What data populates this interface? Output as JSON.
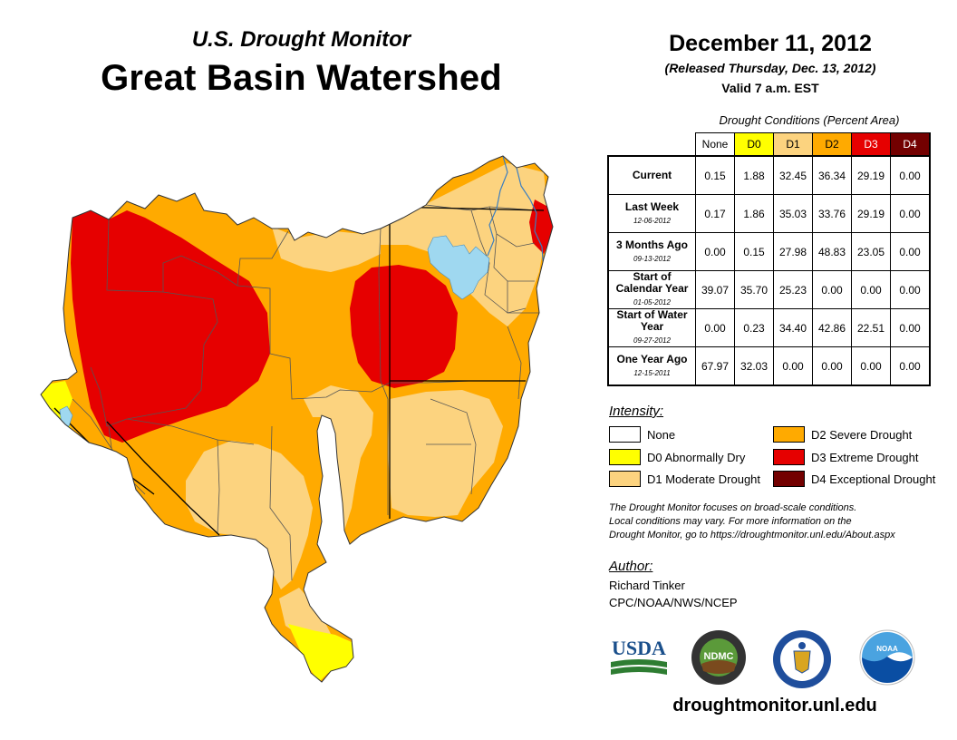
{
  "header": {
    "subtitle": "U.S. Drought Monitor",
    "title": "Great Basin Watershed",
    "date": "December 11, 2012",
    "released": "(Released Thursday, Dec. 13, 2012)",
    "valid": "Valid 7 a.m. EST"
  },
  "table": {
    "caption": "Drought Conditions (Percent Area)",
    "columns": [
      {
        "label": "None",
        "color": "#ffffff",
        "text_color": "#000000"
      },
      {
        "label": "D0",
        "color": "#ffff00",
        "text_color": "#000000"
      },
      {
        "label": "D1",
        "color": "#fcd37f",
        "text_color": "#000000"
      },
      {
        "label": "D2",
        "color": "#ffaa00",
        "text_color": "#000000"
      },
      {
        "label": "D3",
        "color": "#e60000",
        "text_color": "#ffffff"
      },
      {
        "label": "D4",
        "color": "#730000",
        "text_color": "#ffffff"
      }
    ],
    "rows": [
      {
        "label": "Current",
        "date": "",
        "values": [
          "0.15",
          "1.88",
          "32.45",
          "36.34",
          "29.19",
          "0.00"
        ]
      },
      {
        "label": "Last Week",
        "date": "12-06-2012",
        "values": [
          "0.17",
          "1.86",
          "35.03",
          "33.76",
          "29.19",
          "0.00"
        ]
      },
      {
        "label": "3 Months Ago",
        "date": "09-13-2012",
        "values": [
          "0.00",
          "0.15",
          "27.98",
          "48.83",
          "23.05",
          "0.00"
        ]
      },
      {
        "label": "Start of Calendar Year",
        "date": "01-05-2012",
        "values": [
          "39.07",
          "35.70",
          "25.23",
          "0.00",
          "0.00",
          "0.00"
        ]
      },
      {
        "label": "Start of Water Year",
        "date": "09-27-2012",
        "values": [
          "0.00",
          "0.23",
          "34.40",
          "42.86",
          "22.51",
          "0.00"
        ]
      },
      {
        "label": "One Year Ago",
        "date": "12-15-2011",
        "values": [
          "67.97",
          "32.03",
          "0.00",
          "0.00",
          "0.00",
          "0.00"
        ]
      }
    ]
  },
  "legend": {
    "title": "Intensity:",
    "items": [
      {
        "label": "None",
        "color": "#ffffff"
      },
      {
        "label": "D0 Abnormally Dry",
        "color": "#ffff00"
      },
      {
        "label": "D1 Moderate Drought",
        "color": "#fcd37f"
      },
      {
        "label": "D2 Severe Drought",
        "color": "#ffaa00"
      },
      {
        "label": "D3 Extreme Drought",
        "color": "#e60000"
      },
      {
        "label": "D4 Exceptional Drought",
        "color": "#730000"
      }
    ]
  },
  "note": {
    "line1": "The Drought Monitor focuses on broad-scale conditions.",
    "line2": "Local conditions may vary. For more information on the",
    "line3": "Drought Monitor, go to https://droughtmonitor.unl.edu/About.aspx"
  },
  "author": {
    "label": "Author:",
    "name": "Richard Tinker",
    "org": "CPC/NOAA/NWS/NCEP"
  },
  "logos": {
    "usda": "USDA",
    "ndmc": "NDMC",
    "noaa": "NOAA"
  },
  "website": "droughtmonitor.unl.edu",
  "map_colors": {
    "d0": "#ffff00",
    "d1": "#fcd37f",
    "d2": "#ffaa00",
    "d3": "#e60000",
    "water": "#9fd8f0"
  }
}
